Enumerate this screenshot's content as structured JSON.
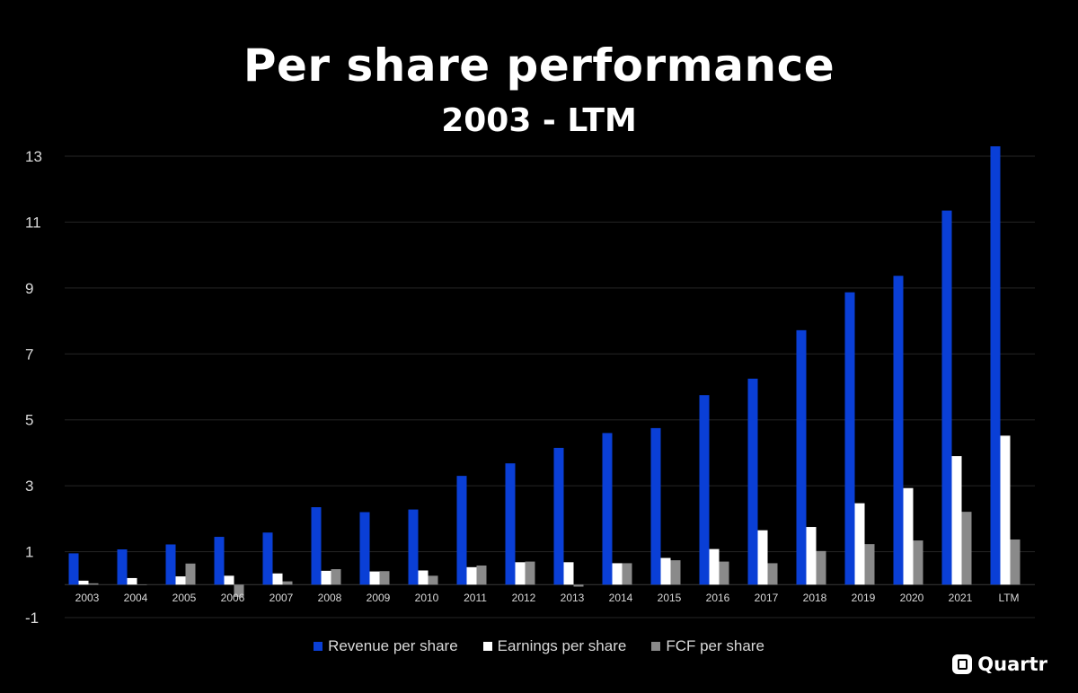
{
  "chart_data": {
    "type": "bar",
    "title": "Per share performance",
    "subtitle": "2003 - LTM",
    "xlabel": "",
    "ylabel": "",
    "ylim": [
      -1,
      13.5
    ],
    "yticks": [
      -1,
      1,
      3,
      5,
      7,
      9,
      11,
      13
    ],
    "grid": true,
    "legend_position": "bottom",
    "categories": [
      "2003",
      "2004",
      "2005",
      "2006",
      "2007",
      "2008",
      "2009",
      "2010",
      "2011",
      "2012",
      "2013",
      "2014",
      "2015",
      "2016",
      "2017",
      "2018",
      "2019",
      "2020",
      "2021",
      "LTM"
    ],
    "series": [
      {
        "name": "Revenue per share",
        "color": "#0a3fd6",
        "values": [
          0.95,
          1.07,
          1.22,
          1.45,
          1.58,
          2.35,
          2.2,
          2.28,
          3.3,
          3.68,
          4.15,
          4.6,
          4.75,
          5.75,
          6.25,
          7.72,
          8.87,
          9.37,
          11.35,
          13.3
        ]
      },
      {
        "name": "Earnings per share",
        "color": "#ffffff",
        "values": [
          0.12,
          0.2,
          0.25,
          0.27,
          0.34,
          0.42,
          0.4,
          0.43,
          0.53,
          0.68,
          0.68,
          0.65,
          0.81,
          1.08,
          1.65,
          1.75,
          2.47,
          2.93,
          3.9,
          4.52
        ]
      },
      {
        "name": "FCF per share",
        "color": "#8a8a8a",
        "values": [
          0.04,
          0.0,
          0.64,
          -0.37,
          0.1,
          0.47,
          0.41,
          0.27,
          0.58,
          0.7,
          -0.06,
          0.65,
          0.74,
          0.7,
          0.65,
          1.02,
          1.23,
          1.34,
          2.21,
          1.37
        ]
      }
    ]
  },
  "brand": {
    "name": "Quartr",
    "icon": "quartr-logo-icon"
  }
}
